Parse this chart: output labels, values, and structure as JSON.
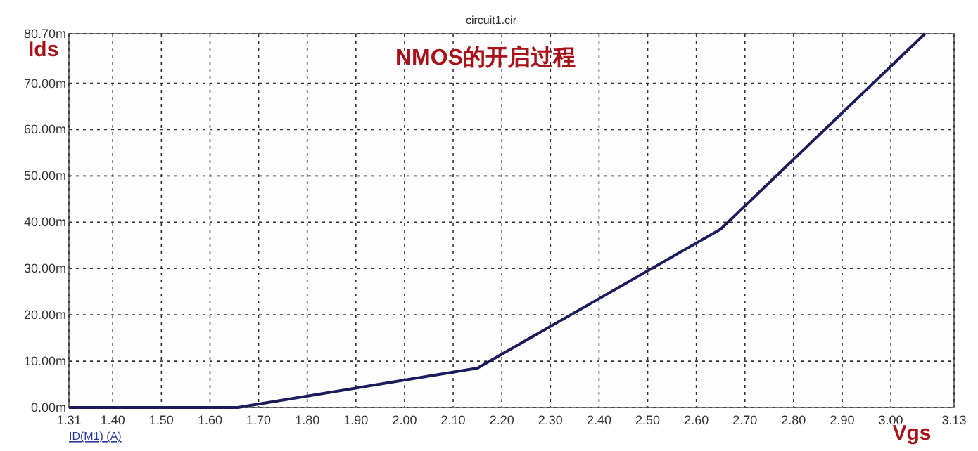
{
  "chart_data": {
    "type": "line",
    "title": "NMOS的开启过程",
    "xlabel": "Vgs",
    "ylabel": "Ids",
    "annotations": [
      "circuit1.cir",
      "ID(M1) (A)"
    ],
    "x": [
      1.31,
      1.657,
      2.15,
      2.65,
      3.07
    ],
    "series": [
      {
        "color": "#1c1c5c",
        "values": [
          0,
          0,
          8.5,
          38.5,
          80.7
        ]
      }
    ],
    "xlim": [
      1.31,
      3.13
    ],
    "xticks": [
      {
        "value": 1.31,
        "label": "1.31"
      },
      {
        "value": 1.4,
        "label": "1.40"
      },
      {
        "value": 1.5,
        "label": "1.50"
      },
      {
        "value": 1.6,
        "label": "1.60"
      },
      {
        "value": 1.7,
        "label": "1.70"
      },
      {
        "value": 1.8,
        "label": "1.80"
      },
      {
        "value": 1.9,
        "label": "1.90"
      },
      {
        "value": 2,
        "label": "2.00"
      },
      {
        "value": 2.1,
        "label": "2.10"
      },
      {
        "value": 2.2,
        "label": "2.20"
      },
      {
        "value": 2.3,
        "label": "2.30"
      },
      {
        "value": 2.4,
        "label": "2.40"
      },
      {
        "value": 2.5,
        "label": "2.50"
      },
      {
        "value": 2.6,
        "label": "2.60"
      },
      {
        "value": 2.7,
        "label": "2.70"
      },
      {
        "value": 2.8,
        "label": "2.80"
      },
      {
        "value": 2.9,
        "label": "2.90"
      },
      {
        "value": 3,
        "label": "3.00"
      },
      {
        "value": 3.13,
        "label": "3.13"
      }
    ],
    "ylim": [
      0,
      80.7
    ],
    "yticks": [
      {
        "value": 0,
        "label": "0.00m"
      },
      {
        "value": 10,
        "label": "10.00m"
      },
      {
        "value": 20,
        "label": "20.00m"
      },
      {
        "value": 30,
        "label": "30.00m"
      },
      {
        "value": 40,
        "label": "40.00m"
      },
      {
        "value": 50,
        "label": "50.00m"
      },
      {
        "value": 60,
        "label": "60.00m"
      },
      {
        "value": 70,
        "label": "70.00m"
      },
      {
        "value": 80.7,
        "label": "80.70m"
      }
    ],
    "grid": true,
    "marker": "none",
    "line_style": "solid"
  }
}
